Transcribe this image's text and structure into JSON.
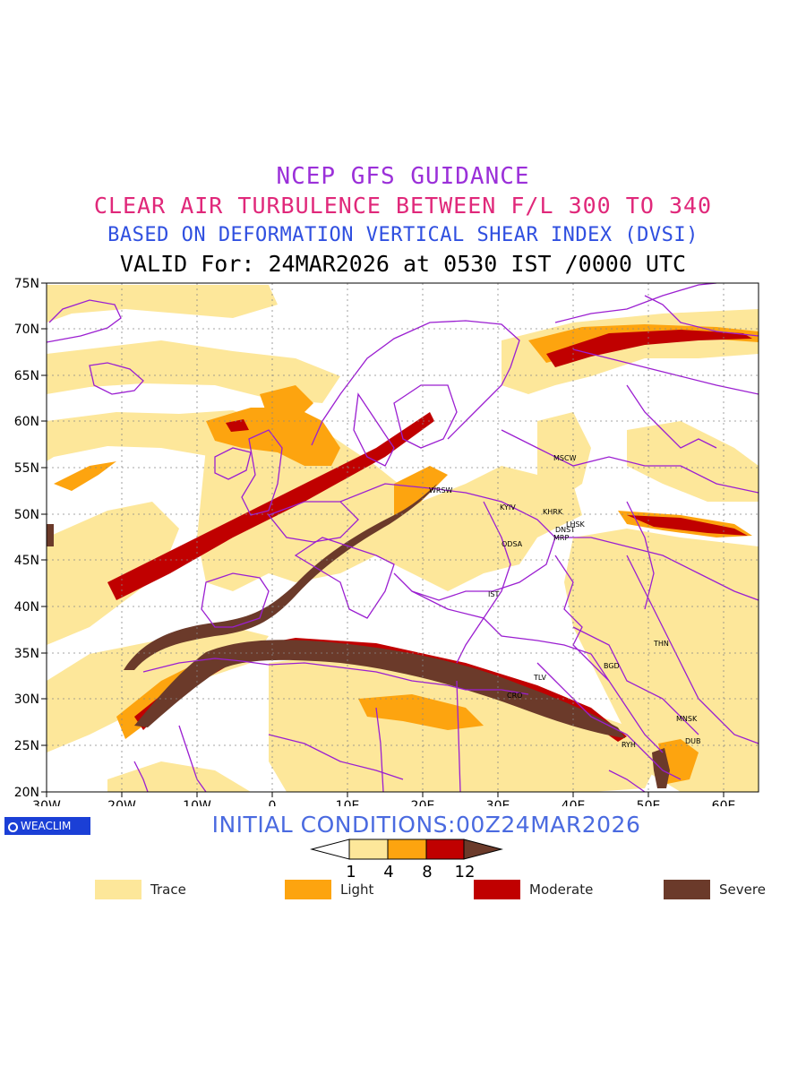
{
  "header": {
    "line1": "NCEP GFS GUIDANCE",
    "line2": "CLEAR AIR TURBULENCE BETWEEN F/L 300 TO 340",
    "line3": "BASED ON DEFORMATION VERTICAL SHEAR INDEX (DVSI)",
    "line4": "VALID For: 24MAR2026 at 0530 IST /0000 UTC"
  },
  "axes": {
    "y_labels": [
      "75N",
      "70N",
      "65N",
      "60N",
      "55N",
      "50N",
      "45N",
      "40N",
      "35N",
      "30N",
      "25N",
      "20N"
    ],
    "x_labels": [
      "30W",
      "20W",
      "10W",
      "0",
      "10E",
      "20E",
      "30E",
      "40E",
      "50E",
      "60E"
    ]
  },
  "cities": [
    "WRSW",
    "KYIV",
    "KHRK",
    "LHSK",
    "DNST",
    "MRP",
    "ODSA",
    "MSCW",
    "IST",
    "THN",
    "BGD",
    "TLV",
    "CRO",
    "RYH",
    "MNSK",
    "DUB"
  ],
  "branding": {
    "logo": "WEACLIM"
  },
  "footer": {
    "initial_conditions": "INITIAL CONDITIONS:00Z24MAR2026"
  },
  "scale": {
    "ticks": [
      "1",
      "4",
      "8",
      "12"
    ]
  },
  "legend": [
    {
      "label": "Trace",
      "color": "#fde79a"
    },
    {
      "label": "Light",
      "color": "#fda40f"
    },
    {
      "label": "Moderate",
      "color": "#c00000"
    },
    {
      "label": "Severe",
      "color": "#6b3a2a"
    }
  ],
  "colors": {
    "border": "#9b1fd1",
    "land_fill": "#ffffff"
  }
}
